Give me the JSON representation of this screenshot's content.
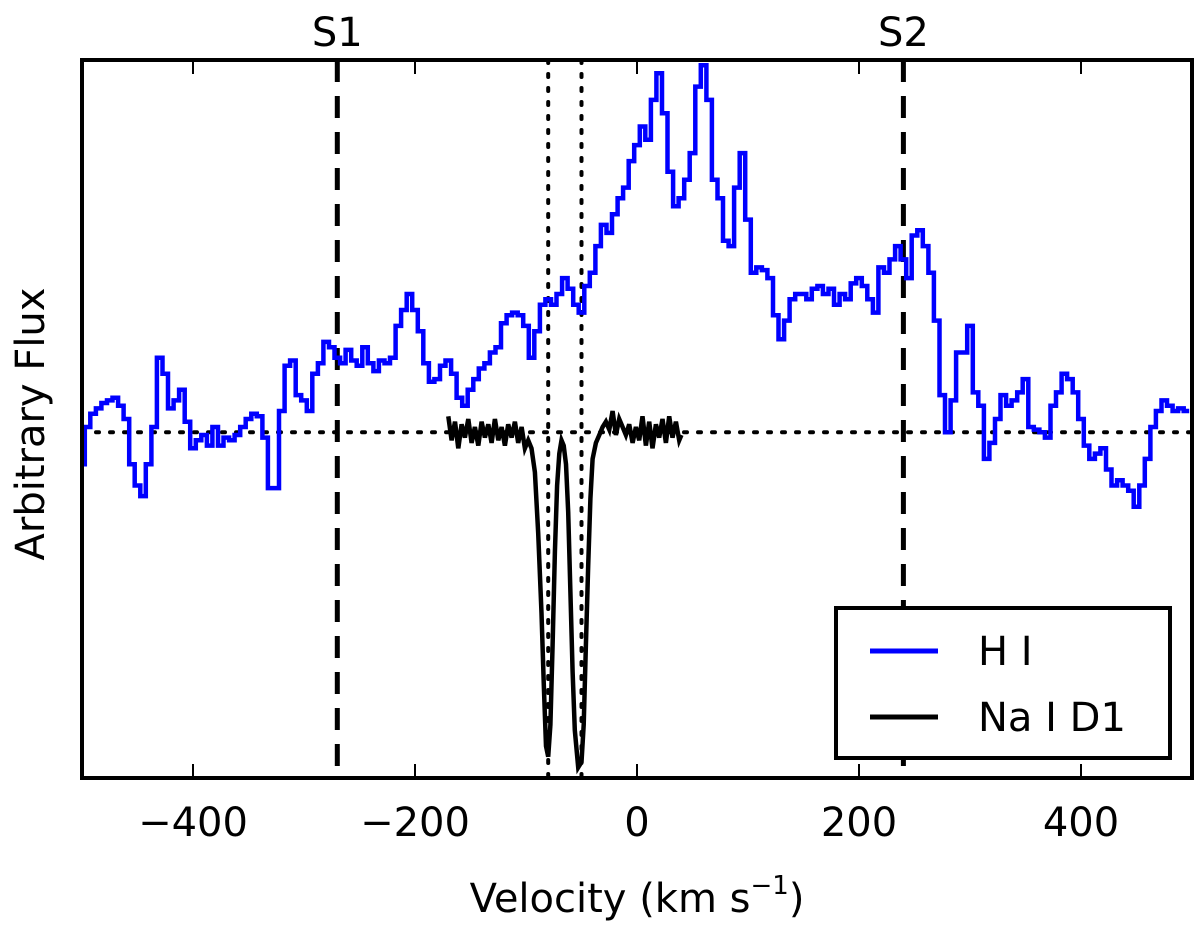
{
  "chart_data": {
    "type": "line",
    "xlabel": "Velocity (km s",
    "xlabel_sup": "−1",
    "xlabel_close": ")",
    "ylabel": "Arbitrary Flux",
    "xlim": [
      -500,
      500
    ],
    "ylim": [
      -1.3,
      1.4
    ],
    "x_ticks": [
      -400,
      -200,
      0,
      200,
      400
    ],
    "x_tick_labels": [
      "−400",
      "−200",
      "0",
      "200",
      "400"
    ],
    "markers": [
      {
        "label": "S1",
        "x": -270
      },
      {
        "label": "S2",
        "x": 240
      }
    ],
    "dotted_verticals": [
      -80,
      -50
    ],
    "baseline_y": 0,
    "legend": [
      {
        "label": "H I",
        "color": "#0000ff"
      },
      {
        "label": "Na I D1",
        "color": "#000000"
      }
    ],
    "series": [
      {
        "name": "H I",
        "color": "#0000ff",
        "step": true,
        "points": [
          [
            -500,
            -0.12
          ],
          [
            -495,
            0.02
          ],
          [
            -490,
            0.07
          ],
          [
            -485,
            0.09
          ],
          [
            -480,
            0.11
          ],
          [
            -475,
            0.12
          ],
          [
            -470,
            0.13
          ],
          [
            -465,
            0.1
          ],
          [
            -460,
            0.05
          ],
          [
            -455,
            -0.12
          ],
          [
            -450,
            -0.2
          ],
          [
            -445,
            -0.24
          ],
          [
            -440,
            -0.12
          ],
          [
            -435,
            0.02
          ],
          [
            -430,
            0.28
          ],
          [
            -425,
            0.22
          ],
          [
            -420,
            0.09
          ],
          [
            -415,
            0.12
          ],
          [
            -410,
            0.16
          ],
          [
            -405,
            0.04
          ],
          [
            -400,
            -0.06
          ],
          [
            -395,
            -0.03
          ],
          [
            -390,
            -0.01
          ],
          [
            -385,
            -0.05
          ],
          [
            -380,
            0.02
          ],
          [
            -375,
            -0.05
          ],
          [
            -370,
            -0.02
          ],
          [
            -365,
            -0.03
          ],
          [
            -360,
            -0.01
          ],
          [
            -355,
            0.02
          ],
          [
            -350,
            0.05
          ],
          [
            -345,
            0.07
          ],
          [
            -340,
            0.06
          ],
          [
            -335,
            -0.02
          ],
          [
            -330,
            -0.21
          ],
          [
            -325,
            -0.21
          ],
          [
            -320,
            0.08
          ],
          [
            -315,
            0.25
          ],
          [
            -310,
            0.27
          ],
          [
            -305,
            0.14
          ],
          [
            -300,
            0.12
          ],
          [
            -295,
            0.08
          ],
          [
            -290,
            0.22
          ],
          [
            -285,
            0.26
          ],
          [
            -280,
            0.34
          ],
          [
            -275,
            0.32
          ],
          [
            -270,
            0.28
          ],
          [
            -265,
            0.26
          ],
          [
            -260,
            0.31
          ],
          [
            -255,
            0.27
          ],
          [
            -250,
            0.25
          ],
          [
            -245,
            0.32
          ],
          [
            -240,
            0.26
          ],
          [
            -235,
            0.23
          ],
          [
            -230,
            0.27
          ],
          [
            -225,
            0.26
          ],
          [
            -220,
            0.28
          ],
          [
            -215,
            0.4
          ],
          [
            -210,
            0.46
          ],
          [
            -205,
            0.52
          ],
          [
            -200,
            0.46
          ],
          [
            -195,
            0.38
          ],
          [
            -190,
            0.26
          ],
          [
            -185,
            0.19
          ],
          [
            -180,
            0.2
          ],
          [
            -175,
            0.25
          ],
          [
            -170,
            0.27
          ],
          [
            -165,
            0.22
          ],
          [
            -160,
            0.13
          ],
          [
            -155,
            0.1
          ],
          [
            -150,
            0.16
          ],
          [
            -145,
            0.2
          ],
          [
            -140,
            0.24
          ],
          [
            -135,
            0.26
          ],
          [
            -130,
            0.3
          ],
          [
            -125,
            0.32
          ],
          [
            -120,
            0.41
          ],
          [
            -115,
            0.44
          ],
          [
            -110,
            0.45
          ],
          [
            -105,
            0.44
          ],
          [
            -100,
            0.4
          ],
          [
            -95,
            0.28
          ],
          [
            -90,
            0.38
          ],
          [
            -85,
            0.48
          ],
          [
            -80,
            0.5
          ],
          [
            -75,
            0.48
          ],
          [
            -70,
            0.52
          ],
          [
            -65,
            0.58
          ],
          [
            -60,
            0.54
          ],
          [
            -55,
            0.48
          ],
          [
            -50,
            0.45
          ],
          [
            -45,
            0.55
          ],
          [
            -40,
            0.6
          ],
          [
            -35,
            0.7
          ],
          [
            -30,
            0.78
          ],
          [
            -25,
            0.75
          ],
          [
            -20,
            0.82
          ],
          [
            -15,
            0.88
          ],
          [
            -10,
            0.92
          ],
          [
            -5,
            1.02
          ],
          [
            0,
            1.08
          ],
          [
            5,
            1.15
          ],
          [
            10,
            1.1
          ],
          [
            15,
            1.25
          ],
          [
            20,
            1.35
          ],
          [
            25,
            1.2
          ],
          [
            30,
            0.98
          ],
          [
            35,
            0.85
          ],
          [
            40,
            0.88
          ],
          [
            45,
            0.95
          ],
          [
            50,
            1.05
          ],
          [
            55,
            1.3
          ],
          [
            60,
            1.38
          ],
          [
            65,
            1.25
          ],
          [
            70,
            0.95
          ],
          [
            75,
            0.88
          ],
          [
            80,
            0.72
          ],
          [
            85,
            0.7
          ],
          [
            90,
            0.92
          ],
          [
            95,
            1.05
          ],
          [
            100,
            0.8
          ],
          [
            105,
            0.6
          ],
          [
            110,
            0.62
          ],
          [
            115,
            0.61
          ],
          [
            120,
            0.58
          ],
          [
            125,
            0.44
          ],
          [
            130,
            0.35
          ],
          [
            135,
            0.42
          ],
          [
            140,
            0.5
          ],
          [
            145,
            0.52
          ],
          [
            150,
            0.52
          ],
          [
            155,
            0.5
          ],
          [
            160,
            0.54
          ],
          [
            165,
            0.55
          ],
          [
            170,
            0.52
          ],
          [
            175,
            0.54
          ],
          [
            180,
            0.48
          ],
          [
            185,
            0.52
          ],
          [
            190,
            0.5
          ],
          [
            195,
            0.56
          ],
          [
            200,
            0.58
          ],
          [
            205,
            0.55
          ],
          [
            210,
            0.5
          ],
          [
            215,
            0.45
          ],
          [
            220,
            0.62
          ],
          [
            225,
            0.6
          ],
          [
            230,
            0.65
          ],
          [
            235,
            0.7
          ],
          [
            240,
            0.65
          ],
          [
            245,
            0.58
          ],
          [
            250,
            0.74
          ],
          [
            255,
            0.76
          ],
          [
            260,
            0.7
          ],
          [
            265,
            0.6
          ],
          [
            270,
            0.42
          ],
          [
            275,
            0.14
          ],
          [
            280,
            0.0
          ],
          [
            285,
            0.12
          ],
          [
            290,
            0.3
          ],
          [
            295,
            0.3
          ],
          [
            300,
            0.4
          ],
          [
            305,
            0.15
          ],
          [
            310,
            0.1
          ],
          [
            315,
            -0.1
          ],
          [
            320,
            -0.04
          ],
          [
            325,
            0.05
          ],
          [
            330,
            0.14
          ],
          [
            335,
            0.1
          ],
          [
            340,
            0.12
          ],
          [
            345,
            0.15
          ],
          [
            350,
            0.2
          ],
          [
            355,
            0.02
          ],
          [
            360,
            0.01
          ],
          [
            365,
            0.0
          ],
          [
            370,
            -0.02
          ],
          [
            375,
            0.1
          ],
          [
            380,
            0.15
          ],
          [
            385,
            0.22
          ],
          [
            390,
            0.2
          ],
          [
            395,
            0.15
          ],
          [
            400,
            0.05
          ],
          [
            405,
            -0.05
          ],
          [
            410,
            -0.1
          ],
          [
            415,
            -0.08
          ],
          [
            420,
            -0.06
          ],
          [
            425,
            -0.14
          ],
          [
            430,
            -0.2
          ],
          [
            435,
            -0.18
          ],
          [
            440,
            -0.2
          ],
          [
            445,
            -0.22
          ],
          [
            450,
            -0.28
          ],
          [
            455,
            -0.2
          ],
          [
            460,
            -0.1
          ],
          [
            465,
            0.02
          ],
          [
            470,
            0.08
          ],
          [
            475,
            0.12
          ],
          [
            480,
            0.1
          ],
          [
            485,
            0.08
          ],
          [
            490,
            0.09
          ],
          [
            495,
            0.08
          ]
        ]
      },
      {
        "name": "Na I D1",
        "color": "#000000",
        "step": false,
        "points": [
          [
            -170,
            0.06
          ],
          [
            -167,
            -0.03
          ],
          [
            -164,
            0.04
          ],
          [
            -161,
            -0.06
          ],
          [
            -158,
            0.03
          ],
          [
            -155,
            -0.02
          ],
          [
            -152,
            0.05
          ],
          [
            -149,
            -0.04
          ],
          [
            -146,
            0.02
          ],
          [
            -143,
            -0.05
          ],
          [
            -140,
            0.04
          ],
          [
            -137,
            -0.02
          ],
          [
            -134,
            0.03
          ],
          [
            -131,
            -0.04
          ],
          [
            -128,
            0.05
          ],
          [
            -125,
            -0.03
          ],
          [
            -122,
            0.02
          ],
          [
            -119,
            -0.05
          ],
          [
            -116,
            0.03
          ],
          [
            -113,
            -0.02
          ],
          [
            -110,
            0.04
          ],
          [
            -107,
            -0.04
          ],
          [
            -104,
            0.02
          ],
          [
            -101,
            -0.06
          ],
          [
            -98,
            -0.03
          ],
          [
            -95,
            -0.06
          ],
          [
            -92,
            -0.15
          ],
          [
            -89,
            -0.38
          ],
          [
            -86,
            -0.68
          ],
          [
            -84,
            -0.95
          ],
          [
            -82,
            -1.18
          ],
          [
            -80,
            -1.22
          ],
          [
            -78,
            -1.1
          ],
          [
            -76,
            -0.8
          ],
          [
            -74,
            -0.45
          ],
          [
            -72,
            -0.2
          ],
          [
            -70,
            -0.08
          ],
          [
            -68,
            -0.03
          ],
          [
            -66,
            -0.05
          ],
          [
            -64,
            -0.12
          ],
          [
            -62,
            -0.3
          ],
          [
            -60,
            -0.6
          ],
          [
            -58,
            -0.9
          ],
          [
            -56,
            -1.12
          ],
          [
            -53,
            -1.26
          ],
          [
            -50,
            -1.24
          ],
          [
            -48,
            -1.1
          ],
          [
            -46,
            -0.8
          ],
          [
            -44,
            -0.5
          ],
          [
            -42,
            -0.25
          ],
          [
            -40,
            -0.1
          ],
          [
            -37,
            -0.04
          ],
          [
            -34,
            -0.01
          ],
          [
            -31,
            0.02
          ],
          [
            -28,
            0.04
          ],
          [
            -25,
            0.01
          ],
          [
            -22,
            0.08
          ],
          [
            -19,
            -0.01
          ],
          [
            -16,
            0.05
          ],
          [
            -13,
            0.02
          ],
          [
            -10,
            -0.01
          ],
          [
            -7,
            0.03
          ],
          [
            -4,
            -0.04
          ],
          [
            -1,
            0.02
          ],
          [
            2,
            -0.03
          ],
          [
            5,
            0.06
          ],
          [
            8,
            -0.05
          ],
          [
            11,
            0.04
          ],
          [
            14,
            -0.06
          ],
          [
            17,
            0.03
          ],
          [
            20,
            -0.02
          ],
          [
            23,
            0.05
          ],
          [
            26,
            -0.04
          ],
          [
            29,
            0.06
          ],
          [
            32,
            -0.02
          ],
          [
            35,
            0.04
          ],
          [
            38,
            -0.03
          ],
          [
            40,
            -0.01
          ]
        ]
      }
    ]
  }
}
